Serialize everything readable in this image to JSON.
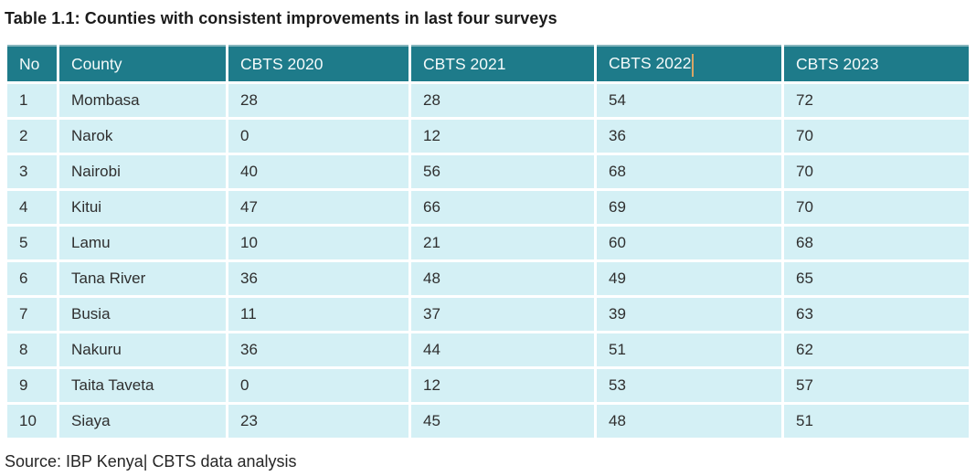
{
  "page": {
    "title": "Table 1.1: Counties with consistent improvements in last four surveys",
    "source_note": "Source: IBP Kenya| CBTS data analysis"
  },
  "table": {
    "columns": [
      "No",
      "County",
      "CBTS 2020",
      "CBTS 2021",
      "CBTS 2022",
      "CBTS 2023"
    ],
    "rows": [
      [
        "1",
        "Mombasa",
        "28",
        "28",
        "54",
        "72"
      ],
      [
        "2",
        "Narok",
        "0",
        "12",
        "36",
        "70"
      ],
      [
        "3",
        "Nairobi",
        "40",
        "56",
        "68",
        "70"
      ],
      [
        "4",
        "Kitui",
        "47",
        "66",
        "69",
        "70"
      ],
      [
        "5",
        "Lamu",
        "10",
        "21",
        "60",
        "68"
      ],
      [
        "6",
        "Tana River",
        "36",
        "48",
        "49",
        "65"
      ],
      [
        "7",
        "Busia",
        "11",
        "37",
        "39",
        "63"
      ],
      [
        "8",
        "Nakuru",
        "36",
        "44",
        "51",
        "62"
      ],
      [
        "9",
        "Taita Taveta",
        "0",
        "12",
        "53",
        "57"
      ],
      [
        "10",
        "Siaya",
        "23",
        "45",
        "48",
        "51"
      ]
    ],
    "text_cursor": {
      "visible": true,
      "located_after": "CBTS 2022"
    }
  },
  "colors": {
    "header_bg": "#1e7b8a",
    "row_bg": "#d4f0f5",
    "caret": "#d8a566"
  }
}
